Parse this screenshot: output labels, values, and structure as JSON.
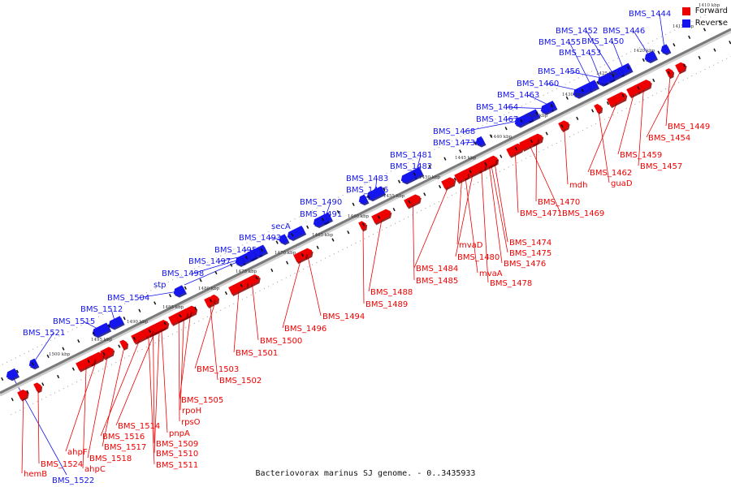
{
  "title": "Bacteriovorax marinus SJ genome. - 0..3435933",
  "colors": {
    "forward": "#ee0000",
    "reverse": "#1515ee",
    "backbone": "#7a7a7a"
  },
  "legend": [
    {
      "label": "Forward",
      "color": "#ee0000"
    },
    {
      "label": "Reverse",
      "color": "#1515ee"
    }
  ],
  "ticks": [
    "1410 kbp",
    "1415 kbp",
    "1420 kbp",
    "1425 kbp",
    "1430 kbp",
    "1435 kbp",
    "1440 kbp",
    "1445 kbp",
    "1450 kbp",
    "1455 kbp",
    "1460 kbp",
    "1465 kbp",
    "1470 kbp",
    "1475 kbp",
    "1480 kbp",
    "1485 kbp",
    "1490 kbp",
    "1495 kbp",
    "1500 kbp"
  ],
  "reverse_genes": [
    "BMS_1444",
    "BMS_1446",
    "BMS_1450",
    "BMS_1452",
    "BMS_1453",
    "BMS_1455",
    "BMS_1456",
    "BMS_1460",
    "BMS_1463",
    "BMS_1464",
    "BMS_1467",
    "BMS_1468",
    "BMS_1473",
    "BMS_1481",
    "BMS_1482",
    "BMS_1483",
    "BMS_1486",
    "BMS_1490",
    "BMS_1491",
    "secA",
    "BMS_1493",
    "BMS_1495",
    "BMS_1497",
    "BMS_1498",
    "stp",
    "BMS_1504",
    "BMS_1512",
    "BMS_1515",
    "BMS_1521",
    "BMS_1522"
  ],
  "forward_genes": [
    "BMS_1449",
    "BMS_1454",
    "BMS_1459",
    "BMS_1457",
    "BMS_1462",
    "guaD",
    "mdh",
    "BMS_1470",
    "BMS_1471",
    "BMS_1469",
    "BMS_1474",
    "BMS_1475",
    "mvaD",
    "BMS_1476",
    "BMS_1480",
    "mvaA",
    "BMS_1478",
    "BMS_1484",
    "BMS_1485",
    "BMS_1488",
    "BMS_1489",
    "BMS_1494",
    "BMS_1496",
    "BMS_1500",
    "BMS_1501",
    "BMS_1503",
    "BMS_1502",
    "BMS_1505",
    "rpoH",
    "rpsO",
    "BMS_1514",
    "pnpA",
    "BMS_1509",
    "BMS_1516",
    "BMS_1510",
    "BMS_1517",
    "BMS_1511",
    "BMS_1518",
    "ahpF",
    "ahpC",
    "BMS_1524",
    "hemB"
  ]
}
